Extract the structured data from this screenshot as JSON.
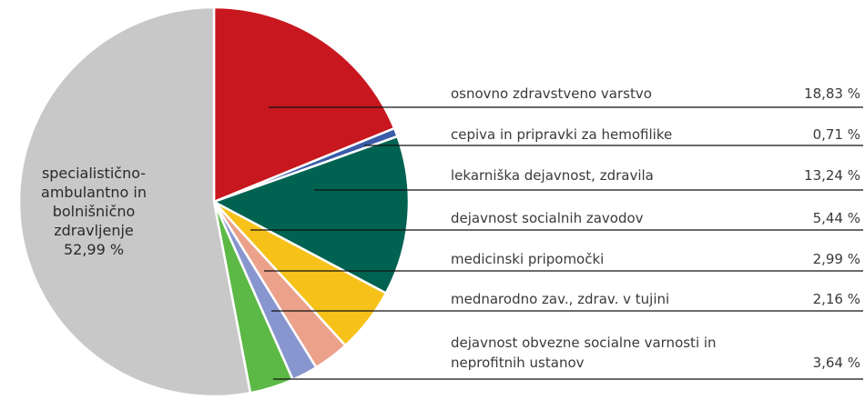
{
  "chart_data": {
    "type": "pie",
    "categories": [
      "osnovno zdravstveno varstvo",
      "cepiva in pripravki za hemofilike",
      "lekarniška dejavnost, zdravila",
      "dejavnost socialnih zavodov",
      "medicinski pripomočki",
      "mednarodno zav., zdrav. v tujini",
      "dejavnost obvezne socialne varnosti in neprofitnih ustanov",
      "specialistično-ambulantno in bolnišnično zdravljenje"
    ],
    "values": [
      18.83,
      0.71,
      13.24,
      5.44,
      2.99,
      2.16,
      3.64,
      52.99
    ],
    "value_labels": [
      "18,83 %",
      "0,71 %",
      "13,24 %",
      "5,44 %",
      "2,99 %",
      "2,16 %",
      "3,64 %",
      "52,99 %"
    ],
    "colors": [
      "#c8171e",
      "#3a5ba8",
      "#006352",
      "#f6c21a",
      "#eba18a",
      "#8896d0",
      "#5cb946",
      "#c8c8c9"
    ]
  }
}
